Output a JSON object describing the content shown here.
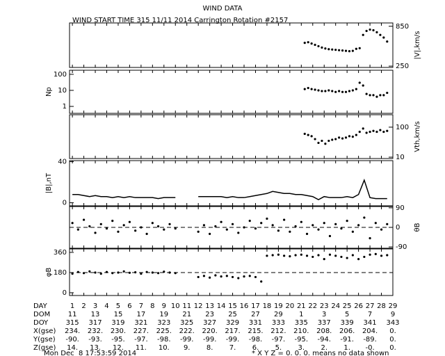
{
  "title": "WIND DATA",
  "subtitle": "WIND START TIME 315 11/11 2014 Carrington Rotation #2157",
  "days": {
    "xlim": [
      0.75,
      29
    ],
    "xticks": [
      1,
      2,
      3,
      4,
      5,
      6,
      7,
      8,
      9,
      10,
      11,
      12,
      13,
      14,
      15,
      16,
      17,
      18,
      19,
      20,
      21,
      22,
      23,
      24,
      25,
      26,
      27,
      28,
      29
    ]
  },
  "chart_data": [
    {
      "type": "scatter",
      "ylabel": "|V|,km/s",
      "axis_side": "right",
      "log_scale": false,
      "color": "#000000",
      "ylim": [
        230,
        900
      ],
      "yticks": [
        250,
        850
      ],
      "x": [
        21.3,
        21.6,
        21.9,
        22.2,
        22.5,
        22.8,
        23.1,
        23.4,
        23.7,
        24.0,
        24.3,
        24.6,
        24.9,
        25.2,
        25.5,
        25.8,
        26.1,
        26.4,
        26.7,
        27.0,
        27.3,
        27.6,
        27.9,
        28.2,
        28.5
      ],
      "values": [
        600,
        610,
        590,
        570,
        550,
        530,
        515,
        505,
        500,
        495,
        490,
        485,
        480,
        475,
        480,
        510,
        520,
        720,
        780,
        800,
        790,
        760,
        720,
        680,
        620
      ]
    },
    {
      "type": "scatter",
      "ylabel": "Np",
      "axis_side": "left",
      "log_scale": true,
      "color": "#000000",
      "ylim": [
        0.37,
        180
      ],
      "yticks": [
        1,
        10,
        100
      ],
      "x": [
        21.3,
        21.6,
        21.9,
        22.2,
        22.5,
        22.8,
        23.1,
        23.4,
        23.7,
        24.0,
        24.3,
        24.6,
        24.9,
        25.2,
        25.5,
        25.8,
        26.1,
        26.4,
        26.7,
        27.0,
        27.3,
        27.6,
        27.9,
        28.2,
        28.5
      ],
      "values": [
        12,
        14,
        12,
        11,
        10,
        9,
        9,
        10,
        9,
        8,
        9,
        8,
        8,
        9,
        10,
        12,
        30,
        20,
        6,
        5,
        5,
        4,
        5,
        5,
        7
      ]
    },
    {
      "type": "scatter",
      "ylabel": "Vth,km/s",
      "axis_side": "right",
      "log_scale": true,
      "color": "#000000",
      "ylim": [
        9,
        260
      ],
      "yticks": [
        10,
        100
      ],
      "x": [
        21.3,
        21.6,
        21.9,
        22.2,
        22.5,
        22.8,
        23.1,
        23.4,
        23.7,
        24.0,
        24.3,
        24.6,
        24.9,
        25.2,
        25.5,
        25.8,
        26.1,
        26.4,
        26.7,
        27.0,
        27.3,
        27.6,
        27.9,
        28.2,
        28.5
      ],
      "values": [
        60,
        55,
        50,
        40,
        30,
        35,
        28,
        35,
        38,
        40,
        45,
        42,
        45,
        50,
        48,
        55,
        70,
        90,
        65,
        70,
        75,
        70,
        80,
        70,
        75
      ]
    },
    {
      "type": "line",
      "ylabel": "|B|,nT",
      "axis_side": "left",
      "log_scale": false,
      "color": "#000000",
      "ylim": [
        -3,
        41
      ],
      "yticks": [
        0,
        40
      ],
      "x": [
        1,
        1.5,
        2,
        2.5,
        3,
        3.5,
        4,
        4.5,
        5,
        5.5,
        6,
        6.5,
        7,
        7.5,
        8,
        8.5,
        9,
        9.5,
        10,
        10.5,
        11,
        11.5,
        12,
        12.5,
        13,
        13.5,
        14,
        14.5,
        15,
        15.5,
        16,
        16.5,
        17,
        17.5,
        18,
        18.5,
        19,
        19.5,
        20,
        20.5,
        21,
        21.5,
        22,
        22.5,
        23,
        23.5,
        24,
        24.5,
        25,
        25.5,
        26,
        26.5,
        27,
        27.5,
        28,
        28.5
      ],
      "values": [
        8,
        8,
        7,
        6,
        7,
        6,
        6,
        5,
        6,
        5,
        6,
        5,
        5,
        5,
        5,
        4,
        5,
        5,
        5,
        null,
        null,
        null,
        6,
        6,
        6,
        6,
        6,
        5,
        6,
        5,
        5,
        6,
        7,
        8,
        9,
        11,
        10,
        9,
        9,
        8,
        8,
        7,
        6,
        3,
        6,
        5,
        5,
        5,
        6,
        5,
        8,
        22,
        5,
        4,
        4,
        4
      ]
    },
    {
      "type": "scatter",
      "ylabel": "θB",
      "axis_side": "right",
      "log_scale": false,
      "color": "#000000",
      "ylim": [
        -96,
        96
      ],
      "yticks": [
        -90,
        0,
        90
      ],
      "reference": 0,
      "x": [
        1,
        1.5,
        2,
        2.5,
        3,
        3.5,
        4,
        4.5,
        5,
        5.5,
        6,
        6.5,
        7,
        7.5,
        8,
        8.5,
        9,
        9.5,
        10,
        10.5,
        11,
        11.5,
        12,
        12.5,
        13,
        13.5,
        14,
        14.5,
        15,
        15.5,
        16,
        16.5,
        17,
        17.5,
        18,
        18.5,
        19,
        19.5,
        20,
        20.5,
        21,
        21.5,
        22,
        22.5,
        23,
        23.5,
        24,
        24.5,
        25,
        25.5,
        26,
        26.5,
        27,
        27.5,
        28,
        28.5
      ],
      "values": [
        20,
        -10,
        35,
        5,
        -25,
        15,
        -5,
        30,
        -20,
        10,
        25,
        -15,
        0,
        -30,
        20,
        5,
        -10,
        15,
        -5,
        null,
        null,
        null,
        -20,
        10,
        -30,
        5,
        25,
        -10,
        15,
        -25,
        0,
        30,
        -5,
        20,
        40,
        10,
        -15,
        35,
        -20,
        5,
        25,
        -30,
        10,
        -10,
        20,
        -40,
        15,
        -5,
        30,
        -20,
        10,
        45,
        -50,
        20,
        -10,
        15
      ]
    },
    {
      "type": "scatter",
      "ylabel": "φB",
      "axis_side": "left",
      "log_scale": false,
      "color": "#000000",
      "ylim": [
        -25,
        391
      ],
      "yticks": [
        0,
        180,
        360
      ],
      "reference": 180,
      "x": [
        1,
        1.5,
        2,
        2.5,
        3,
        3.5,
        4,
        4.5,
        5,
        5.5,
        6,
        6.5,
        7,
        7.5,
        8,
        8.5,
        9,
        9.5,
        10,
        10.5,
        11,
        11.5,
        12,
        12.5,
        13,
        13.5,
        14,
        14.5,
        15,
        15.5,
        16,
        16.5,
        17,
        17.5,
        18,
        18.5,
        19,
        19.5,
        20,
        20.5,
        21,
        21.5,
        22,
        22.5,
        23,
        23.5,
        24,
        24.5,
        25,
        25.5,
        26,
        26.5,
        27,
        27.5,
        28,
        28.5
      ],
      "values": [
        170,
        185,
        175,
        190,
        180,
        170,
        185,
        175,
        180,
        190,
        178,
        182,
        170,
        185,
        180,
        175,
        188,
        180,
        175,
        null,
        null,
        null,
        140,
        150,
        135,
        155,
        145,
        150,
        140,
        130,
        145,
        150,
        140,
        100,
        330,
        335,
        340,
        330,
        325,
        335,
        340,
        330,
        320,
        335,
        300,
        340,
        330,
        320,
        310,
        335,
        300,
        320,
        340,
        345,
        330,
        335
      ]
    }
  ],
  "table": {
    "day_label": "DAY",
    "rows": [
      {
        "label": "DOM",
        "cells": [
          "11",
          "13",
          "15",
          "17",
          "19",
          "21",
          "23",
          "25",
          "27",
          "29",
          "1",
          "3",
          "5",
          "7",
          "9"
        ]
      },
      {
        "label": "DOY",
        "cells": [
          "315",
          "317",
          "319",
          "321",
          "323",
          "325",
          "327",
          "329",
          "331",
          "333",
          "335",
          "337",
          "339",
          "341",
          "343"
        ]
      },
      {
        "label": "X(gse)",
        "cells": [
          "234.",
          "232.",
          "230.",
          "227.",
          "225.",
          "222.",
          "220.",
          "217.",
          "215.",
          "212.",
          "210.",
          "208.",
          "206.",
          "204.",
          "0."
        ]
      },
      {
        "label": "Y(gse)",
        "cells": [
          "-90.",
          "-93.",
          "-95.",
          "-97.",
          "-98.",
          "-99.",
          "-99.",
          "-99.",
          "-98.",
          "-97.",
          "-95.",
          "-94.",
          "-91.",
          "-89.",
          "0."
        ]
      },
      {
        "label": "Z(gse)",
        "cells": [
          "14.",
          "13.",
          "12.",
          "11.",
          "10.",
          "9.",
          "8.",
          "7.",
          "6.",
          "5.",
          "3.",
          "2.",
          "1.",
          "-0.",
          "0."
        ]
      }
    ]
  },
  "footer": {
    "date": "Mon Dec  8 17:53:59 2014",
    "note": "* X Y Z = 0. 0. 0. means no data shown"
  }
}
